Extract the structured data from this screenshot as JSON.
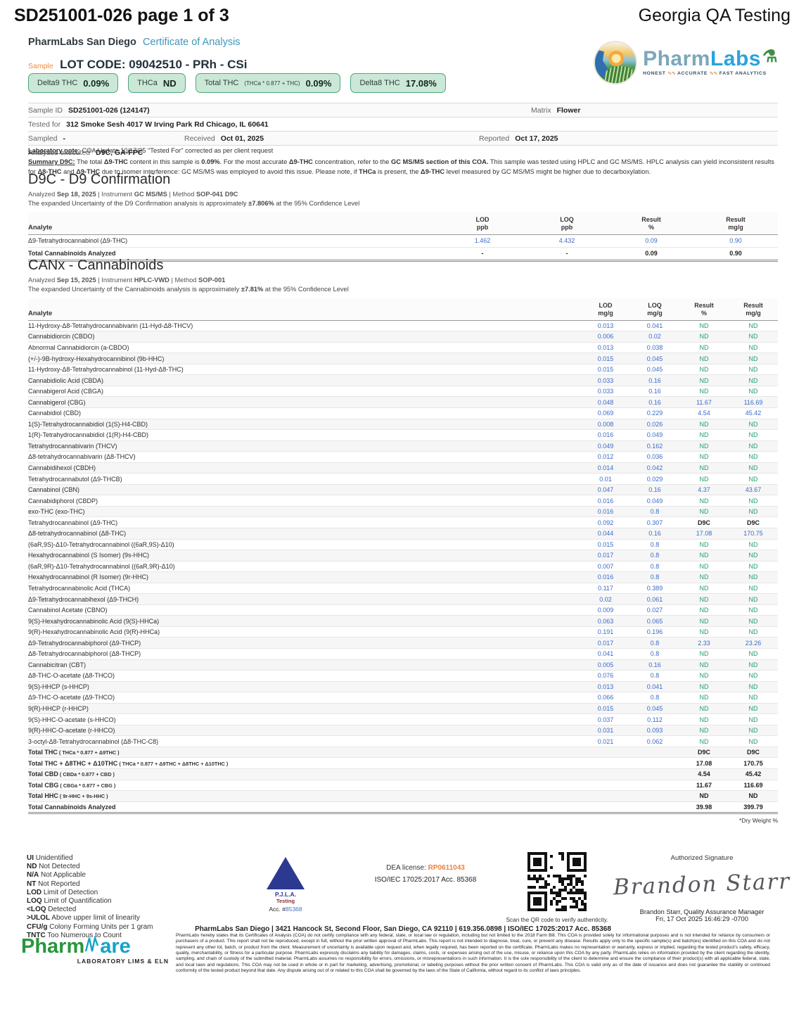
{
  "colors": {
    "nd_green": "#1f9e6e",
    "result_blue": "#3a6bc9",
    "chip_bg": "#cbe8d7",
    "chip_border": "#4aa87c",
    "teal": "#3f97ba",
    "orange": "#f08a3c"
  },
  "header": {
    "doc_id": "SD251001-026 page 1 of 3",
    "qa_label": "Georgia QA Testing",
    "lab_name": "PharmLabs San Diego",
    "coa_label": "Certificate of Analysis",
    "sample_tag": "Sample",
    "lot_code": "LOT CODE: 09042510 - PRh - CSi",
    "logo": {
      "brand_p1": "Pharm",
      "brand_p2": "Labs",
      "flask": "⚗",
      "tagline_1": "HONEST",
      "tagline_2": "ACCURATE",
      "tagline_3": "FAST ANALYTICS",
      "squiggle": "∿∿"
    }
  },
  "chips": [
    {
      "label": "Delta9 THC",
      "formula": "",
      "value": "0.09%"
    },
    {
      "label": "THCa",
      "formula": "",
      "value": "ND"
    },
    {
      "label": "Total THC",
      "formula": "(THCa * 0.877 + THC)",
      "value": "0.09%"
    },
    {
      "label": "Delta8 THC",
      "formula": "",
      "value": "17.08%"
    }
  ],
  "sample_info": {
    "row1": {
      "l1": "Sample ID",
      "v1": "SD251001-026 (124147)",
      "l2": "Matrix",
      "v2": "Flower"
    },
    "row2": {
      "l1": "Tested for",
      "v1": "312 Smoke Sesh 4017 W Irving Park Rd Chicago, IL 60641"
    },
    "row3": {
      "l1": "Sampled",
      "v1": "-",
      "l2": "Received",
      "v2": "Oct 01, 2025",
      "l3": "Reported",
      "v3": "Oct 17, 2025"
    },
    "row4": {
      "l1": "Analyses executed",
      "v1": "D9C, GA-FPC"
    }
  },
  "notes": {
    "laboratory": [
      {
        "t": "Laboratory note:",
        "b": true,
        "u": true
      },
      {
        "t": " COA Update 10/17/25 \"Tested For\" corrected as per client request"
      }
    ],
    "summary": [
      {
        "t": "Summary D9C:",
        "b": true,
        "u": true
      },
      {
        "t": " The total "
      },
      {
        "t": "Δ9-THC",
        "b": true
      },
      {
        "t": " content in this sample is "
      },
      {
        "t": "0.09%",
        "b": true
      },
      {
        "t": ". For the most accurate "
      },
      {
        "t": "Δ9-THC",
        "b": true
      },
      {
        "t": " concentration, refer to the "
      },
      {
        "t": "GC MS/MS section of this COA.",
        "b": true
      },
      {
        "t": " This sample was tested using HPLC and GC MS/MS. HPLC analysis can yield inconsistent results for "
      },
      {
        "t": "Δ8-THC",
        "b": true
      },
      {
        "t": " and "
      },
      {
        "t": "Δ9-THC",
        "b": true
      },
      {
        "t": " due to isomer interference: GC MS/MS was employed to avoid this issue. Please note, if "
      },
      {
        "t": "THCa",
        "b": true
      },
      {
        "t": " is present, the "
      },
      {
        "t": "Δ9-THC",
        "b": true
      },
      {
        "t": " level measured by GC MS/MS might be higher due to decarboxylation."
      }
    ]
  },
  "d9c": {
    "title": "D9C - D9 Confirmation",
    "meta": [
      {
        "t": "Analyzed "
      },
      {
        "t": "Sep 18, 2025",
        "b": true
      },
      {
        "t": "   |   Instrument "
      },
      {
        "t": "GC MS/MS",
        "b": true
      },
      {
        "t": "  | Method "
      },
      {
        "t": "SOP-041 D9C",
        "b": true
      }
    ],
    "uncertainty": [
      {
        "t": "The expanded Uncertainty of the D9 Confirmation analysis is approximately "
      },
      {
        "t": "±7.806%",
        "b": true
      },
      {
        "t": " at the 95% Confidence Level"
      }
    ],
    "header": {
      "analyte": "Analyte",
      "cols": [
        [
          "LOD",
          "ppb"
        ],
        [
          "LOQ",
          "ppb"
        ],
        [
          "Result",
          "%"
        ],
        [
          "Result",
          "mg/g"
        ]
      ]
    },
    "rows": [
      [
        "Δ9-Tetrahydrocannabinol (Δ9-THC)",
        "1.462",
        "4.432",
        "0.09",
        "0.90"
      ]
    ],
    "total": [
      "Total Cannabinoids Analyzed",
      "-",
      "-",
      "0.09",
      "0.90"
    ]
  },
  "canx": {
    "title": "CANx - Cannabinoids",
    "meta": [
      {
        "t": "Analyzed "
      },
      {
        "t": "Sep 15, 2025",
        "b": true
      },
      {
        "t": "   |   Instrument "
      },
      {
        "t": "HPLC-VWD",
        "b": true
      },
      {
        "t": "  | Method "
      },
      {
        "t": "SOP-001",
        "b": true
      }
    ],
    "uncertainty": [
      {
        "t": "The expanded Uncertainty of the Cannabinoids analysis is approximately "
      },
      {
        "t": "±7.81%",
        "b": true
      },
      {
        "t": " at the 95% Confidence Level"
      }
    ],
    "header": {
      "analyte": "Analyte",
      "cols": [
        [
          "LOD",
          "mg/g"
        ],
        [
          "LOQ",
          "mg/g"
        ],
        [
          "Result",
          "%"
        ],
        [
          "Result",
          "mg/g"
        ]
      ]
    },
    "rows": [
      [
        "11-Hydroxy-Δ8-Tetrahydrocannabivarin (11-Hyd-Δ8-THCV)",
        "0.013",
        "0.041",
        "ND",
        "ND"
      ],
      [
        "Cannabidiorcin (CBDO)",
        "0.006",
        "0.02",
        "ND",
        "ND"
      ],
      [
        "Abnormal Cannabidiorcin (a-CBDO)",
        "0.013",
        "0.038",
        "ND",
        "ND"
      ],
      [
        "(+/-)-9B-hydroxy-Hexahydrocannibinol (9b-HHC)",
        "0.015",
        "0.045",
        "ND",
        "ND"
      ],
      [
        "11-Hydroxy-Δ8-Tetrahydrocannabinol (11-Hyd-Δ8-THC)",
        "0.015",
        "0.045",
        "ND",
        "ND"
      ],
      [
        "Cannabidiolic Acid (CBDA)",
        "0.033",
        "0.16",
        "ND",
        "ND"
      ],
      [
        "Cannabigerol Acid (CBGA)",
        "0.033",
        "0.16",
        "ND",
        "ND"
      ],
      [
        "Cannabigerol (CBG)",
        "0.048",
        "0.16",
        "11.67",
        "116.69"
      ],
      [
        "Cannabidiol (CBD)",
        "0.069",
        "0.229",
        "4.54",
        "45.42"
      ],
      [
        "1(S)-Tetrahydrocannabidiol (1(S)-H4-CBD)",
        "0.008",
        "0.026",
        "ND",
        "ND"
      ],
      [
        "1(R)-Tetrahydrocannabidiol (1(R)-H4-CBD)",
        "0.016",
        "0.049",
        "ND",
        "ND"
      ],
      [
        "Tetrahydrocannabivarin (THCV)",
        "0.049",
        "0.162",
        "ND",
        "ND"
      ],
      [
        "Δ8-tetrahydrocannabivarin (Δ8-THCV)",
        "0.012",
        "0.036",
        "ND",
        "ND"
      ],
      [
        "Cannabidihexol (CBDH)",
        "0.014",
        "0.042",
        "ND",
        "ND"
      ],
      [
        "Tetrahydrocannabutol (Δ9-THCB)",
        "0.01",
        "0.029",
        "ND",
        "ND"
      ],
      [
        "Cannabinol (CBN)",
        "0.047",
        "0.16",
        "4.37",
        "43.67"
      ],
      [
        "Cannabidiphorol (CBDP)",
        "0.016",
        "0.049",
        "ND",
        "ND"
      ],
      [
        "exo-THC (exo-THC)",
        "0.016",
        "0.8",
        "ND",
        "ND"
      ],
      [
        "Tetrahydrocannabinol (Δ9-THC)",
        "0.092",
        "0.307",
        "D9C",
        "D9C"
      ],
      [
        "Δ8-tetrahydrocannabinol (Δ8-THC)",
        "0.044",
        "0.16",
        "17.08",
        "170.75"
      ],
      [
        "(6aR,9S)-Δ10-Tetrahydrocannabinol ((6aR,9S)-Δ10)",
        "0.015",
        "0.8",
        "ND",
        "ND"
      ],
      [
        "Hexahydrocannabinol (S Isomer) (9s-HHC)",
        "0.017",
        "0.8",
        "ND",
        "ND"
      ],
      [
        "(6aR,9R)-Δ10-Tetrahydrocannabinol ((6aR,9R)-Δ10)",
        "0.007",
        "0.8",
        "ND",
        "ND"
      ],
      [
        "Hexahydrocannabinol (R Isomer) (9r-HHC)",
        "0.016",
        "0.8",
        "ND",
        "ND"
      ],
      [
        "Tetrahydrocannabinolic Acid (THCA)",
        "0.117",
        "0.389",
        "ND",
        "ND"
      ],
      [
        "Δ9-Tetrahydrocannabihexol (Δ9-THCH)",
        "0.02",
        "0.061",
        "ND",
        "ND"
      ],
      [
        "Cannabinol Acetate (CBNO)",
        "0.009",
        "0.027",
        "ND",
        "ND"
      ],
      [
        "9(S)-Hexahydrocannabinolic Acid (9(S)-HHCa)",
        "0.063",
        "0.065",
        "ND",
        "ND"
      ],
      [
        "9(R)-Hexahydrocannabinolic Acid (9(R)-HHCa)",
        "0.191",
        "0.196",
        "ND",
        "ND"
      ],
      [
        "Δ9-Tetrahydrocannabiphorol (Δ9-THCP)",
        "0.017",
        "0.8",
        "2.33",
        "23.26"
      ],
      [
        "Δ8-Tetrahydrocannabiphorol (Δ8-THCP)",
        "0.041",
        "0.8",
        "ND",
        "ND"
      ],
      [
        "Cannabicitran (CBT)",
        "0.005",
        "0.16",
        "ND",
        "ND"
      ],
      [
        "Δ8-THC-O-acetate (Δ8-THCO)",
        "0.076",
        "0.8",
        "ND",
        "ND"
      ],
      [
        "9(S)-HHCP (s-HHCP)",
        "0.013",
        "0.041",
        "ND",
        "ND"
      ],
      [
        "Δ9-THC-O-acetate (Δ9-THCO)",
        "0.066",
        "0.8",
        "ND",
        "ND"
      ],
      [
        "9(R)-HHCP (r-HHCP)",
        "0.015",
        "0.045",
        "ND",
        "ND"
      ],
      [
        "9(S)-HHC-O-acetate (s-HHCO)",
        "0.037",
        "0.112",
        "ND",
        "ND"
      ],
      [
        "9(R)-HHC-O-acetate (r-HHCO)",
        "0.031",
        "0.093",
        "ND",
        "ND"
      ],
      [
        "3-octyl-Δ8-Tetrahydrocannabinol (Δ8-THC-C8)",
        "0.021",
        "0.062",
        "ND",
        "ND"
      ]
    ],
    "totals": [
      {
        "name": "Total THC",
        "formula": "( THCa * 0.877 + Δ9THC )",
        "pct": "D9C",
        "mgg": "D9C"
      },
      {
        "name": "Total THC + Δ8THC + Δ10THC",
        "formula": "( THCa * 0.877 + Δ9THC + Δ8THC + Δ10THC )",
        "pct": "17.08",
        "mgg": "170.75"
      },
      {
        "name": "Total CBD",
        "formula": "( CBDa * 0.877 + CBD )",
        "pct": "4.54",
        "mgg": "45.42"
      },
      {
        "name": "Total CBG",
        "formula": "( CBGa * 0.877 + CBG )",
        "pct": "11.67",
        "mgg": "116.69"
      },
      {
        "name": "Total HHC",
        "formula": "( 9r-HHC + 9s-HHC )",
        "pct": "ND",
        "mgg": "ND"
      },
      {
        "name": "Total Cannabinoids Analyzed",
        "formula": "",
        "pct": "39.98",
        "mgg": "399.79"
      }
    ],
    "dry_weight_note": "*Dry Weight %"
  },
  "footer": {
    "legend": [
      [
        "UI",
        "Unidentified"
      ],
      [
        "ND",
        "Not Detected"
      ],
      [
        "N/A",
        "Not Applicable"
      ],
      [
        "NT",
        "Not Reported"
      ],
      [
        "LOD",
        "Limit of Detection"
      ],
      [
        "LOQ",
        "Limit of Quantification"
      ],
      [
        "<LOQ",
        "Detected"
      ],
      [
        ">ULOL",
        "Above upper limit of linearity"
      ],
      [
        "CFU/g",
        "Colony Forming Units per 1 gram"
      ],
      [
        "TNTC",
        "Too Numerous to Count"
      ]
    ],
    "pjla": {
      "line1": "P.J.L.A.",
      "line2": "Testing",
      "acc_label": "Acc. #",
      "acc_number": "85368",
      "atom": "⚛"
    },
    "dea": {
      "label": "DEA license:",
      "number": "RP0611043",
      "iso": "ISO/IEC 17025:2017 Acc. 85368"
    },
    "qr_caption": "Scan the QR code to verify authenticity.",
    "signature": {
      "title": "Authorized Signature",
      "script": "Brandon Starr",
      "name": "Brandon Starr, Quality Assurance Manager",
      "date": "Fri, 17 Oct 2025 16:46:29 -0700"
    },
    "address": "PharmLabs San Diego | 3421 Hancock St, Second Floor, San Diego, CA 92110 | 619.356.0898 | ISO/IEC 17025:2017 Acc. 85368",
    "pharmware": {
      "part1": "Pharm",
      "part2": "are",
      "sub": "LABORATORY LIMS & ELN"
    },
    "disclaimer": "PharmLabs hereby states that its Certificates of Analysis (COA) do not certify compliance with any federal, state, or local law or regulation, including but not limited to the 2018 Farm Bill. This COA is provided solely for informational purposes and is not intended for reliance by consumers or purchasers of a product. This report shall not be reproduced, except in full, without the prior written approval of PharmLabs. This report is not intended to diagnose, treat, cure, or prevent any disease. Results apply only to the specific sample(s) and batch(es) identified on this COA and do not represent any other lot, batch, or product from the client. Measurement of uncertainty is available upon request and, when legally required, has been reported on the certificate. PharmLabs makes no representation or warranty, express or implied, regarding the tested product's safety, efficacy, quality, merchantability, or fitness for a particular purpose. PharmLabs expressly disclaims any liability for damages, claims, costs, or expenses arising out of the use, misuse, or reliance upon this COA by any party. PharmLabs relies on information provided by the client regarding the identity, sampling, and chain of custody of the submitted material. PharmLabs assumes no responsibility for errors, omissions, or misrepresentations in such information. It is the sole responsibility of the client to determine and ensure the compliance of their product(s) with all applicable federal, state, and local laws and regulations. This COA may not be used in whole or in part for marketing, advertising, promotional, or labeling purposes without the prior written consent of PharmLabs. This COA is valid only as of the date of issuance and does not guarantee the stability or continued conformity of the tested product beyond that date. Any dispute arising out of or related to this COA shall be governed by the laws of the State of California, without regard to its conflict of laws principles."
  }
}
